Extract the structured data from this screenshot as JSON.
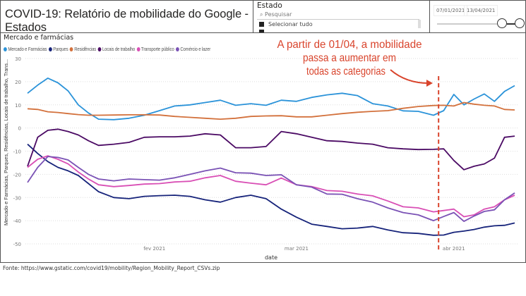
{
  "header": {
    "title": "COVID-19: Relatório de mobilidade do Google - Estados"
  },
  "slicer": {
    "title": "Estado",
    "search_placeholder": "Pesquisar",
    "select_all": "Selecionar tudo"
  },
  "date_range": {
    "start": "07/01/2021",
    "end": "13/04/2021"
  },
  "chart_title": "Mercado e farmácias",
  "annotation": {
    "lines": [
      "A partir de 01/04, a mobilidade",
      "passa a aumentar em",
      "todas as categorias"
    ],
    "color": "#d9442c",
    "marker_date": "2021-03-29"
  },
  "footer": "Fonte: https://www.gstatic.com/covid19/mobility/Region_Mobility_Report_CSVs.zip",
  "chart_data": {
    "type": "line",
    "xlabel": "date",
    "ylabel": "Mercado e Farmácias, Parques, Residências, Locais de trabalho, Trans...",
    "ylim": [
      -50,
      30
    ],
    "yticks": [
      30,
      20,
      10,
      0,
      -10,
      -20,
      -30,
      -40,
      -50
    ],
    "xlim": [
      "2021-01-07",
      "2021-04-13"
    ],
    "xticks": [
      {
        "date": "2021-02-01",
        "label": "fev 2021"
      },
      {
        "date": "2021-03-01",
        "label": "mar 2021"
      },
      {
        "date": "2021-04-01",
        "label": "abr 2021"
      }
    ],
    "grid": true,
    "legend": "top-left",
    "x": [
      "2021-01-07",
      "2021-01-09",
      "2021-01-11",
      "2021-01-13",
      "2021-01-15",
      "2021-01-17",
      "2021-01-19",
      "2021-01-21",
      "2021-01-24",
      "2021-01-27",
      "2021-01-30",
      "2021-02-02",
      "2021-02-05",
      "2021-02-08",
      "2021-02-11",
      "2021-02-14",
      "2021-02-17",
      "2021-02-20",
      "2021-02-23",
      "2021-02-26",
      "2021-03-01",
      "2021-03-04",
      "2021-03-07",
      "2021-03-10",
      "2021-03-13",
      "2021-03-16",
      "2021-03-19",
      "2021-03-22",
      "2021-03-25",
      "2021-03-28",
      "2021-03-30",
      "2021-04-01",
      "2021-04-03",
      "2021-04-05",
      "2021-04-07",
      "2021-04-09",
      "2021-04-11",
      "2021-04-13"
    ],
    "series": [
      {
        "name": "Mercado e Farmácias",
        "color": "#2b93d9",
        "values": [
          15,
          18.5,
          21.5,
          19.5,
          16,
          10,
          6.5,
          3.8,
          3.6,
          4.2,
          5.5,
          7.5,
          9.5,
          10,
          11,
          12,
          9.8,
          10.5,
          9.8,
          12,
          11.5,
          13.2,
          14.3,
          15,
          14,
          10.5,
          9.5,
          7.4,
          7.2,
          5.5,
          7.5,
          14.5,
          10,
          12.5,
          14.7,
          11.5,
          15.8,
          18.3
        ]
      },
      {
        "name": "Parques",
        "color": "#16237a",
        "values": [
          -7,
          -11,
          -14.5,
          -17,
          -18.5,
          -20.5,
          -24,
          -27.5,
          -30,
          -30.5,
          -29.5,
          -29.2,
          -29,
          -29.5,
          -31,
          -32,
          -30,
          -29,
          -30.5,
          -35,
          -38.5,
          -41.5,
          -42.5,
          -43.5,
          -43.2,
          -42.5,
          -44,
          -45.2,
          -45.5,
          -46.3,
          -46.2,
          -45,
          -44.5,
          -43.8,
          -42.8,
          -42.2,
          -42,
          -41
        ]
      },
      {
        "name": "Residências",
        "color": "#d3713c",
        "values": [
          8.3,
          8,
          7,
          6.7,
          6.2,
          5.8,
          5.5,
          5.5,
          5.6,
          5.7,
          5.7,
          5.6,
          5,
          4.6,
          4.2,
          3.8,
          4.2,
          5,
          5.2,
          5.3,
          4.8,
          4.8,
          5.5,
          6.2,
          6.8,
          7.2,
          7.5,
          8.5,
          9.3,
          9.7,
          9.8,
          9.5,
          11,
          10.3,
          9.8,
          9.5,
          8,
          7.8
        ]
      },
      {
        "name": "Locais de trabalho",
        "color": "#4b0a64",
        "values": [
          -16.5,
          -4,
          -1,
          -0.5,
          -1.5,
          -3,
          -5.5,
          -7.5,
          -7,
          -6.2,
          -4,
          -3.8,
          -3.8,
          -3.5,
          -2.5,
          -3,
          -8.5,
          -8.5,
          -8,
          -1.5,
          -2.5,
          -4,
          -5.5,
          -5.8,
          -6.5,
          -7,
          -8.5,
          -9,
          -9.3,
          -9.2,
          -9,
          -14,
          -18,
          -16.5,
          -15.5,
          -13,
          -4,
          -3.5
        ]
      },
      {
        "name": "Transporte público",
        "color": "#d94fb5",
        "values": [
          -17,
          -13.5,
          -12,
          -13.5,
          -15.5,
          -19,
          -22,
          -24.5,
          -25.3,
          -24.8,
          -24.2,
          -24,
          -23.3,
          -23,
          -21.5,
          -20.5,
          -23,
          -23.8,
          -24.5,
          -21.6,
          -24.5,
          -25.3,
          -27,
          -27.3,
          -28.5,
          -29.3,
          -31.5,
          -34,
          -34.5,
          -36.2,
          -35.6,
          -35,
          -38.3,
          -37.5,
          -35,
          -34,
          -31,
          -29
        ]
      },
      {
        "name": "Comércio e lazer",
        "color": "#7a52b5",
        "values": [
          -23.5,
          -17,
          -12.3,
          -12.7,
          -13.8,
          -17,
          -20,
          -22,
          -22.8,
          -22,
          -22.3,
          -22.5,
          -21.5,
          -20,
          -18.5,
          -17.3,
          -19.3,
          -19.5,
          -20.5,
          -20.2,
          -24.5,
          -25.5,
          -28.5,
          -28.6,
          -30.5,
          -32,
          -34.5,
          -36.5,
          -37.5,
          -40,
          -38.2,
          -36.5,
          -40.3,
          -38,
          -36,
          -35.3,
          -31,
          -28
        ]
      }
    ]
  }
}
